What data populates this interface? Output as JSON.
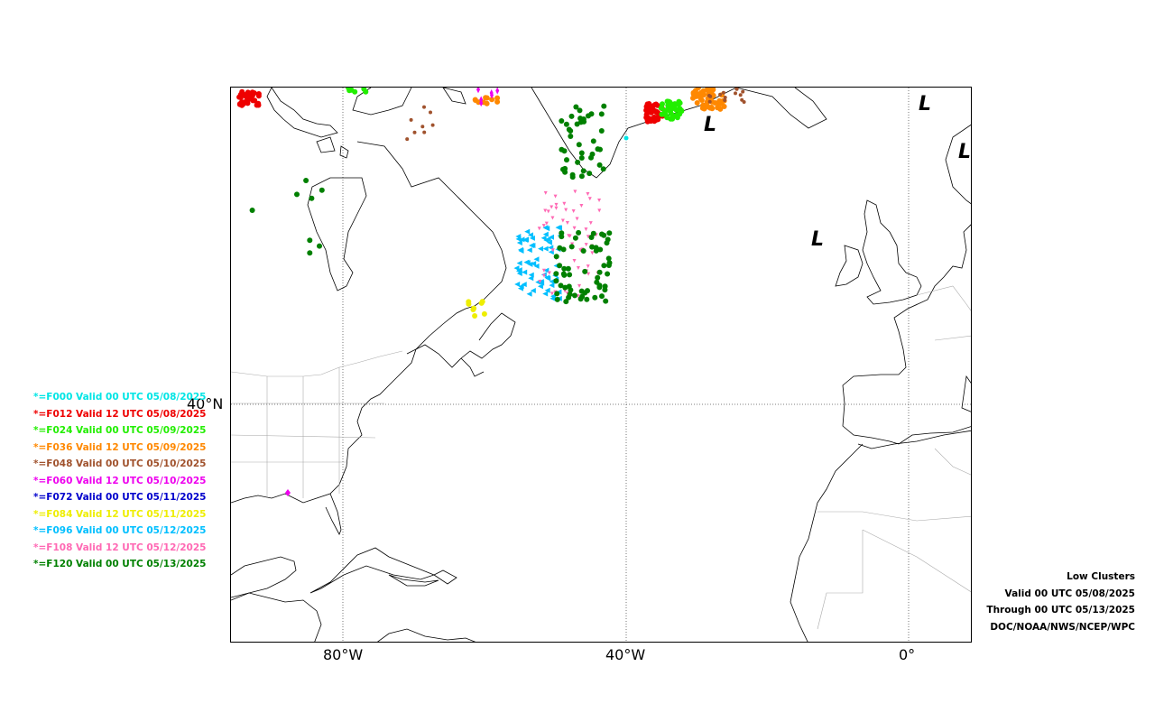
{
  "map": {
    "lon_labels": [
      "80°W",
      "40°W",
      "0°"
    ],
    "lat_labels": [
      "40°N"
    ],
    "low_marker": "L",
    "gridlines": true
  },
  "legend": [
    {
      "text": "*=F000 Valid 00 UTC 05/08/2025",
      "color": "#00e5e5"
    },
    {
      "text": "*=F012 Valid 12 UTC 05/08/2025",
      "color": "#ee0000"
    },
    {
      "text": "*=F024 Valid 00 UTC 05/09/2025",
      "color": "#22ee00"
    },
    {
      "text": "*=F036 Valid 12 UTC 05/09/2025",
      "color": "#ff8800"
    },
    {
      "text": "*=F048 Valid 00 UTC 05/10/2025",
      "color": "#a0522d"
    },
    {
      "text": "*=F060 Valid 12 UTC 05/10/2025",
      "color": "#ee00ee"
    },
    {
      "text": "*=F072 Valid 00 UTC 05/11/2025",
      "color": "#0000cc"
    },
    {
      "text": "*=F084 Valid 12 UTC 05/11/2025",
      "color": "#eeee00"
    },
    {
      "text": "*=F096 Valid 00 UTC 05/12/2025",
      "color": "#00bfff"
    },
    {
      "text": "*=F108 Valid 12 UTC 05/12/2025",
      "color": "#ff69b4"
    },
    {
      "text": "*=F120 Valid 00 UTC 05/13/2025",
      "color": "#008000"
    }
  ],
  "info": {
    "line1": "Low Clusters",
    "line2": "Valid 00 UTC 05/08/2025",
    "line3": "Through 00 UTC 05/13/2025",
    "line4": "DOC/NOAA/NWS/NCEP/WPC"
  }
}
